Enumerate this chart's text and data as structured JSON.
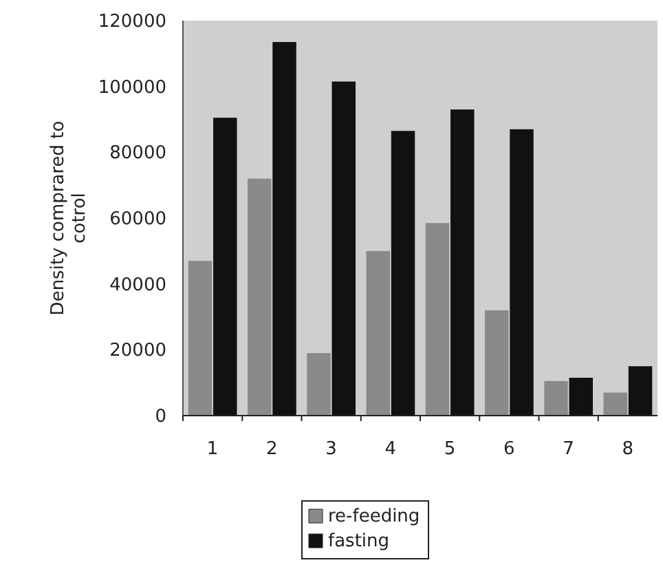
{
  "chart_data": {
    "type": "bar",
    "ylabel": "Density comprared to cotrol",
    "categories": [
      "1",
      "2",
      "3",
      "4",
      "5",
      "6",
      "7",
      "8"
    ],
    "series": [
      {
        "name": "re-feeding",
        "color": "#8a8a8a",
        "values": [
          47000,
          72000,
          19000,
          50000,
          58500,
          32000,
          10500,
          7000
        ]
      },
      {
        "name": "fasting",
        "color": "#111111",
        "values": [
          90500,
          113500,
          101500,
          86500,
          93000,
          87000,
          11500,
          15000
        ]
      }
    ],
    "ylim": [
      0,
      120000
    ],
    "yticks": [
      0,
      20000,
      40000,
      60000,
      80000,
      100000,
      120000
    ],
    "grid": false,
    "legend": "bottom"
  }
}
